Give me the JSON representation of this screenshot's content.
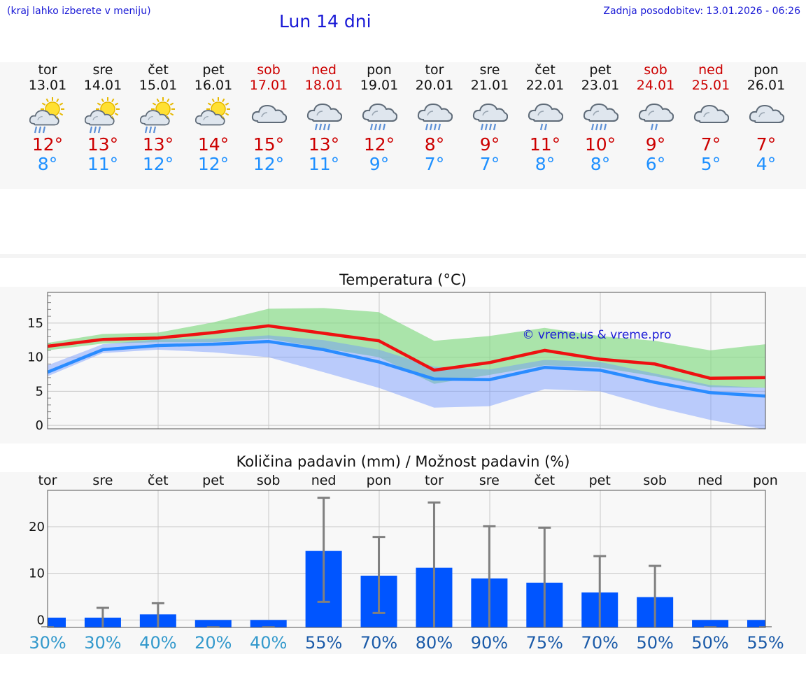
{
  "header": {
    "left_note": "(kraj lahko izberete v meniju)",
    "title": "Lun 14 dni",
    "updated": "Zadnja posodobitev: 13.01.2026 - 06:26"
  },
  "days": [
    {
      "name": "tor",
      "date": "13.01",
      "weekend": false,
      "icon": "sun-cloud-rain-icon",
      "tmax": "12°",
      "tmin": "8°"
    },
    {
      "name": "sre",
      "date": "14.01",
      "weekend": false,
      "icon": "sun-cloud-rain-icon",
      "tmax": "13°",
      "tmin": "11°"
    },
    {
      "name": "čet",
      "date": "15.01",
      "weekend": false,
      "icon": "sun-cloud-rain-icon",
      "tmax": "13°",
      "tmin": "12°"
    },
    {
      "name": "pet",
      "date": "16.01",
      "weekend": false,
      "icon": "sun-cloud-icon",
      "tmax": "14°",
      "tmin": "12°"
    },
    {
      "name": "sob",
      "date": "17.01",
      "weekend": true,
      "icon": "cloud-icon",
      "tmax": "15°",
      "tmin": "12°"
    },
    {
      "name": "ned",
      "date": "18.01",
      "weekend": true,
      "icon": "cloud-heavy-rain-icon",
      "tmax": "13°",
      "tmin": "11°"
    },
    {
      "name": "pon",
      "date": "19.01",
      "weekend": false,
      "icon": "cloud-heavy-rain-icon",
      "tmax": "12°",
      "tmin": "9°"
    },
    {
      "name": "tor",
      "date": "20.01",
      "weekend": false,
      "icon": "cloud-heavy-rain-icon",
      "tmax": "8°",
      "tmin": "7°"
    },
    {
      "name": "sre",
      "date": "21.01",
      "weekend": false,
      "icon": "cloud-heavy-rain-icon",
      "tmax": "9°",
      "tmin": "7°"
    },
    {
      "name": "čet",
      "date": "22.01",
      "weekend": false,
      "icon": "cloud-rain-icon",
      "tmax": "11°",
      "tmin": "8°"
    },
    {
      "name": "pet",
      "date": "23.01",
      "weekend": false,
      "icon": "cloud-heavy-rain-icon",
      "tmax": "10°",
      "tmin": "8°"
    },
    {
      "name": "sob",
      "date": "24.01",
      "weekend": true,
      "icon": "cloud-rain-icon",
      "tmax": "9°",
      "tmin": "6°"
    },
    {
      "name": "ned",
      "date": "25.01",
      "weekend": true,
      "icon": "cloud-icon",
      "tmax": "7°",
      "tmin": "5°"
    },
    {
      "name": "pon",
      "date": "26.01",
      "weekend": false,
      "icon": "cloud-icon",
      "tmax": "7°",
      "tmin": "4°"
    }
  ],
  "chart_data": [
    {
      "type": "line",
      "title": "Temperatura (°C)",
      "watermark": "© vreme.us & vreme.pro",
      "x": [
        0,
        1,
        2,
        3,
        4,
        5,
        6,
        7,
        8,
        9,
        10,
        11,
        12,
        13
      ],
      "ylim": [
        -0.5,
        19.5
      ],
      "yticks": [
        0,
        5,
        10,
        15
      ],
      "series": [
        {
          "name": "max",
          "color": "#ee1111",
          "values": [
            11.6,
            12.6,
            12.8,
            13.6,
            14.6,
            13.5,
            12.4,
            8.1,
            9.2,
            11.0,
            9.7,
            9.0,
            6.9,
            7.0
          ]
        },
        {
          "name": "min",
          "color": "#2a8cff",
          "values": [
            7.8,
            11.1,
            11.7,
            11.9,
            12.3,
            11.1,
            9.3,
            6.8,
            6.7,
            8.5,
            8.1,
            6.3,
            4.8,
            4.3
          ]
        }
      ],
      "bands": [
        {
          "name": "max-spread",
          "color": "#7fd87f",
          "opacity": 0.65,
          "upper": [
            12.1,
            13.4,
            13.6,
            15.1,
            17.1,
            17.2,
            16.6,
            12.4,
            13.1,
            14.3,
            13.1,
            12.4,
            11.0,
            11.9
          ],
          "lower": [
            11.0,
            12.0,
            12.2,
            12.2,
            12.7,
            11.3,
            10.0,
            6.1,
            7.4,
            8.8,
            8.5,
            7.2,
            5.6,
            5.5
          ]
        },
        {
          "name": "min-spread",
          "color": "#6f94ff",
          "opacity": 0.45,
          "upper": [
            8.8,
            11.9,
            12.6,
            12.7,
            13.2,
            12.5,
            11.1,
            8.6,
            8.2,
            9.6,
            9.3,
            7.6,
            5.9,
            5.5
          ],
          "lower": [
            7.2,
            10.6,
            11.1,
            10.7,
            10.0,
            7.8,
            5.5,
            2.6,
            2.8,
            5.3,
            5.0,
            2.7,
            0.8,
            -0.6
          ]
        }
      ],
      "grid": true
    },
    {
      "type": "bar",
      "title": "Količina padavin (mm) / Možnost padavin (%)",
      "categories": [
        "tor",
        "sre",
        "čet",
        "pet",
        "sob",
        "ned",
        "pon",
        "tor",
        "sre",
        "čet",
        "pet",
        "sob",
        "ned",
        "pon"
      ],
      "values": [
        0.5,
        0.5,
        1.2,
        0,
        0,
        14.8,
        9.5,
        11.2,
        8.9,
        8.0,
        5.9,
        4.9,
        0,
        0
      ],
      "error_low": [
        0,
        0,
        0,
        0,
        0,
        3.9,
        1.5,
        0,
        0,
        0,
        0,
        0,
        0,
        0
      ],
      "error_high": [
        0,
        2.6,
        3.6,
        0,
        0,
        26.2,
        17.8,
        25.2,
        20.1,
        19.8,
        13.7,
        11.6,
        0,
        0
      ],
      "probability": [
        "30%",
        "30%",
        "40%",
        "20%",
        "40%",
        "55%",
        "70%",
        "80%",
        "90%",
        "75%",
        "70%",
        "50%",
        "50%",
        "55%"
      ],
      "ylim": [
        -1.6,
        27.8
      ],
      "yticks": [
        0,
        10,
        20
      ],
      "bar_color": "#0055ff",
      "error_color": "#808080",
      "prob_colors": {
        "low": "#3399cc",
        "high": "#1a5aa8"
      }
    }
  ]
}
